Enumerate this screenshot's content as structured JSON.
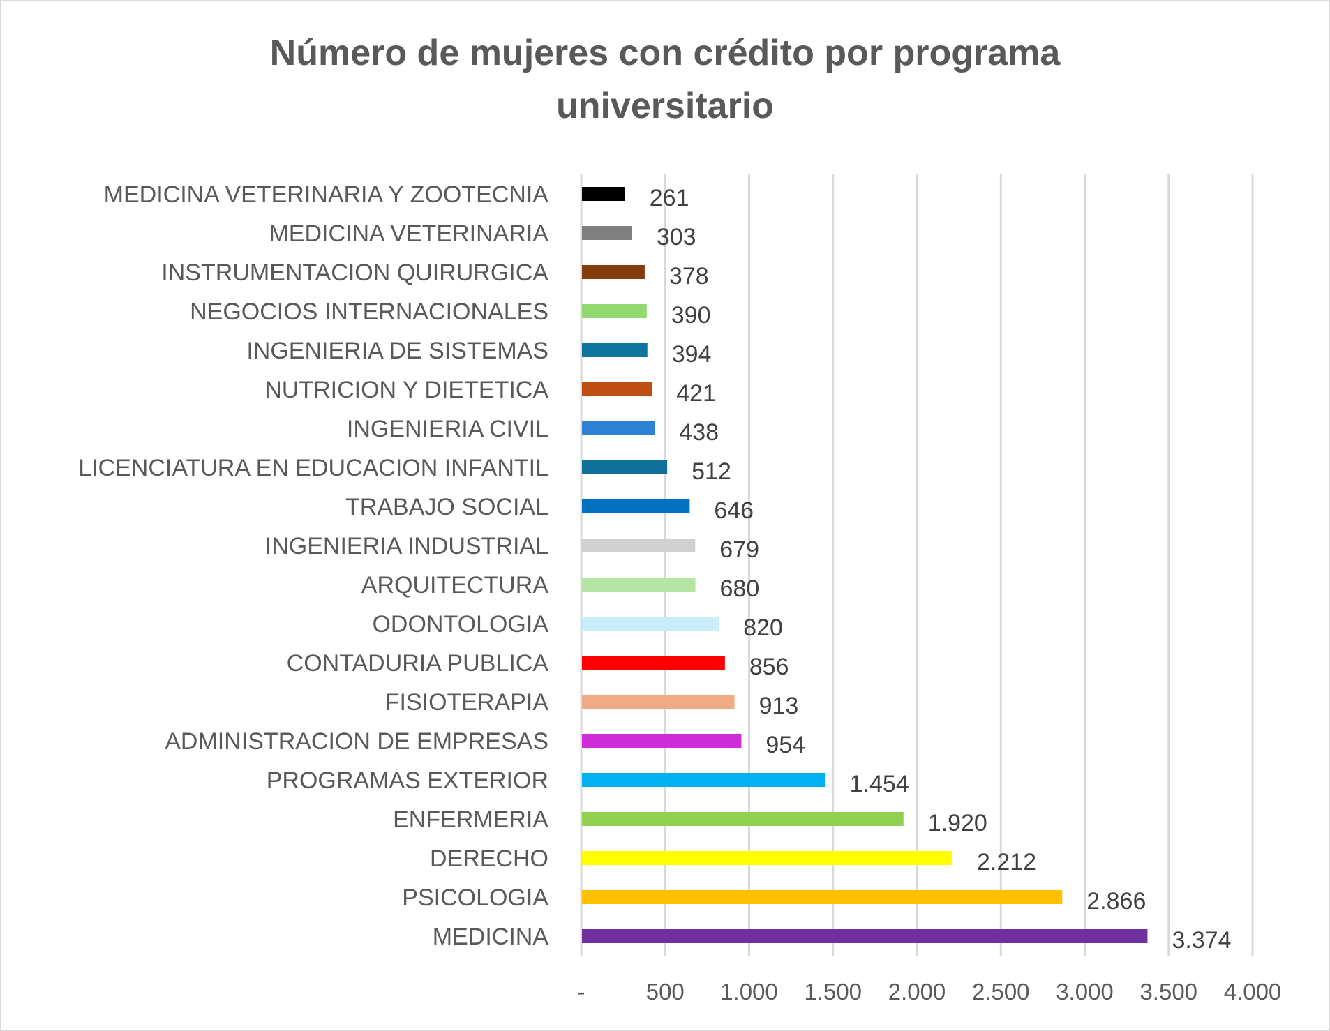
{
  "chart_data": {
    "type": "bar",
    "orientation": "horizontal",
    "title_lines": [
      "Número de mujeres con crédito por programa",
      "universitario"
    ],
    "title": "Número de mujeres con crédito por programa universitario",
    "xlabel": "",
    "ylabel": "",
    "xlim": [
      0,
      4000
    ],
    "x_ticks": [
      0,
      500,
      1000,
      1500,
      2000,
      2500,
      3000,
      3500,
      4000
    ],
    "x_tick_labels": [
      "-",
      "500",
      "1.000",
      "1.500",
      "2.000",
      "2.500",
      "3.000",
      "3.500",
      "4.000"
    ],
    "grid": "vertical",
    "legend": "none",
    "categories": [
      "MEDICINA VETERINARIA Y ZOOTECNIA",
      "MEDICINA VETERINARIA",
      "INSTRUMENTACION QUIRURGICA",
      "NEGOCIOS INTERNACIONALES",
      "INGENIERIA DE SISTEMAS",
      "NUTRICION Y DIETETICA",
      "INGENIERIA CIVIL",
      "LICENCIATURA EN EDUCACION INFANTIL",
      "TRABAJO SOCIAL",
      "INGENIERIA INDUSTRIAL",
      "ARQUITECTURA",
      "ODONTOLOGIA",
      "CONTADURIA PUBLICA",
      "FISIOTERAPIA",
      "ADMINISTRACION DE EMPRESAS",
      "PROGRAMAS EXTERIOR",
      "ENFERMERIA",
      "DERECHO",
      "PSICOLOGIA",
      "MEDICINA"
    ],
    "values": [
      261,
      303,
      378,
      390,
      394,
      421,
      438,
      512,
      646,
      679,
      680,
      820,
      856,
      913,
      954,
      1454,
      1920,
      2212,
      2866,
      3374
    ],
    "value_labels": [
      "261",
      "303",
      "378",
      "390",
      "394",
      "421",
      "438",
      "512",
      "646",
      "679",
      "680",
      "820",
      "856",
      "913",
      "954",
      "1.454",
      "1.920",
      "2.212",
      "2.866",
      "3.374"
    ],
    "colors": [
      "#000000",
      "#808080",
      "#843c0c",
      "#92d96f",
      "#0e769e",
      "#c04f15",
      "#2e81d6",
      "#0e7099",
      "#0070c0",
      "#d0d0d0",
      "#b4e5a2",
      "#caedfb",
      "#ff0000",
      "#f2aa84",
      "#d02cd9",
      "#00b0f0",
      "#92d050",
      "#ffff00",
      "#ffc000",
      "#7030a0"
    ]
  }
}
